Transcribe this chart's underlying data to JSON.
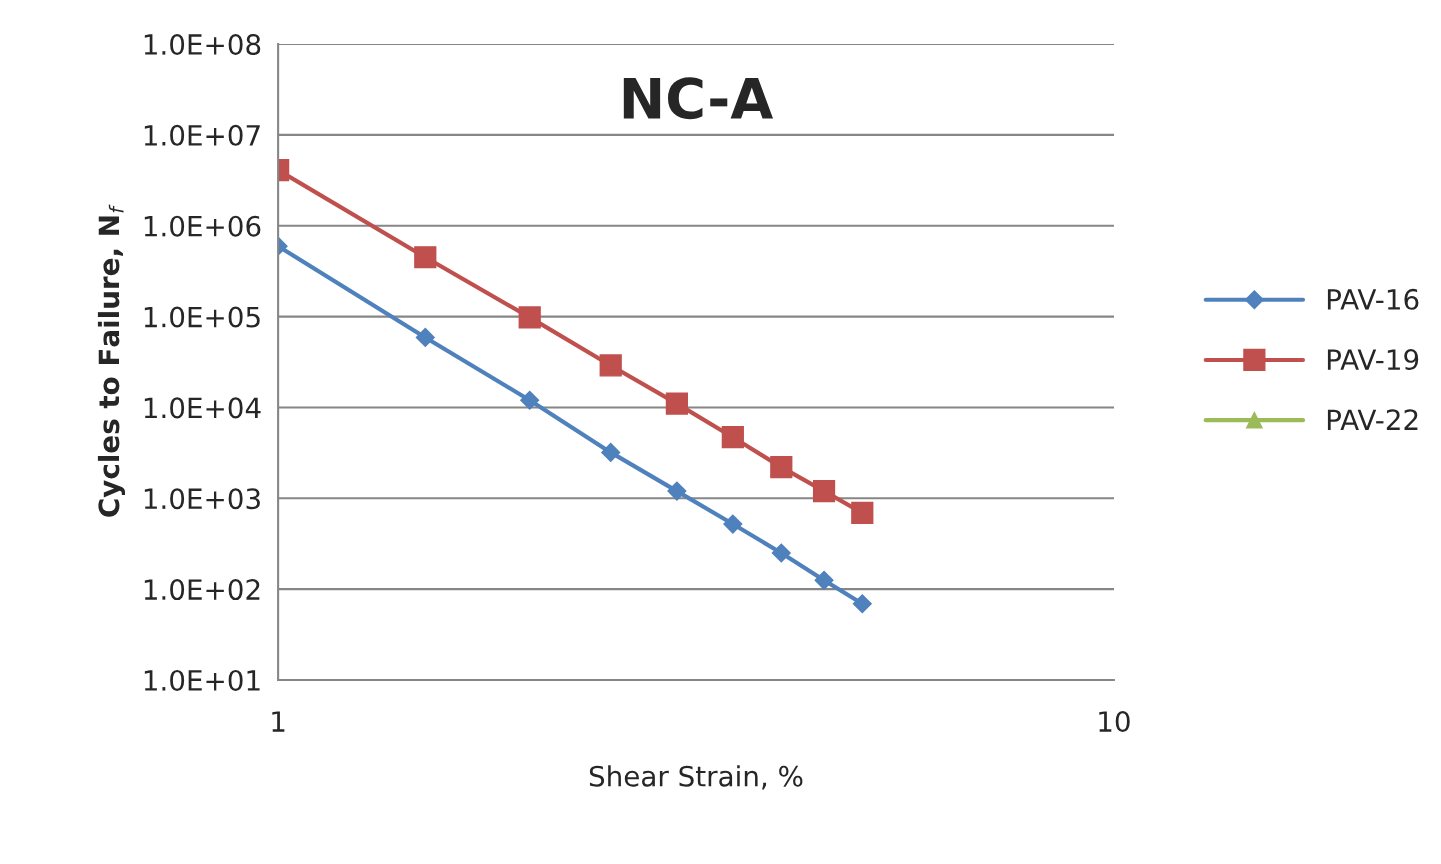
{
  "chart_data": {
    "type": "line",
    "title": "NC-A",
    "xlabel": "Shear Strain, %",
    "ylabel": "Cycles to Failure, N$_{f}$",
    "log": "xy",
    "grid": "y",
    "legend": "right",
    "line_style": "solid",
    "x": [
      1,
      1.5,
      2,
      2.5,
      3,
      3.5,
      4,
      4.5,
      5
    ],
    "xlim": [
      1,
      10
    ],
    "xticks": [
      1,
      10
    ],
    "ylim": [
      10,
      100000000
    ],
    "yticks": [
      {
        "value": 10,
        "label": "1.0E+01"
      },
      {
        "value": 100,
        "label": "1.0E+02"
      },
      {
        "value": 1000,
        "label": "1.0E+03"
      },
      {
        "value": 10000,
        "label": "1.0E+04"
      },
      {
        "value": 100000,
        "label": "1.0E+05"
      },
      {
        "value": 1000000,
        "label": "1.0E+06"
      },
      {
        "value": 10000000,
        "label": "1.0E+07"
      },
      {
        "value": 100000000,
        "label": "1.0E+08"
      }
    ],
    "series": [
      {
        "name": "PAV-16",
        "color": "#4f81bd",
        "marker": "diamond",
        "values": [
          596000,
          59000,
          12000,
          3200,
          1200,
          520,
          250,
          125,
          69
        ]
      },
      {
        "name": "PAV-19",
        "color": "#c0504d",
        "marker": "square",
        "values": [
          4100000,
          450000,
          98000,
          29000,
          11000,
          4700,
          2200,
          1200,
          690
        ]
      },
      {
        "name": "PAV-22",
        "color": "#9bbb59",
        "marker": "triangle",
        "values": [
          null,
          null,
          null,
          null,
          null,
          null,
          null,
          null,
          null
        ]
      }
    ]
  }
}
